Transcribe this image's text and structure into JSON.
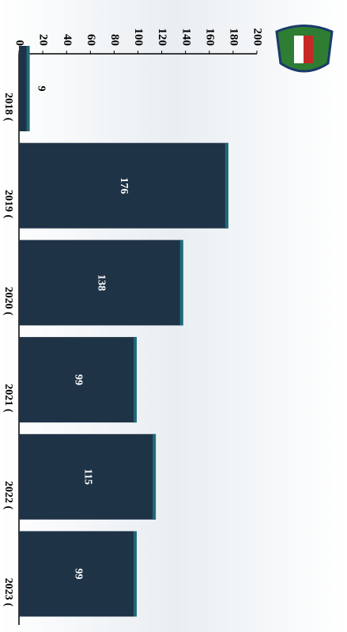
{
  "chart_data": {
    "type": "bar",
    "orientation": "rotated",
    "categories": [
      "2018 (",
      "2019 (",
      "2020 (",
      "2021 (",
      "2022 (",
      "2023 ("
    ],
    "values": [
      9,
      176,
      138,
      99,
      115,
      99
    ],
    "color": "#1f3347",
    "ylim": [
      0,
      200
    ],
    "yticks": [
      0,
      20,
      40,
      60,
      80,
      100,
      120,
      140,
      160,
      180,
      200
    ]
  }
}
